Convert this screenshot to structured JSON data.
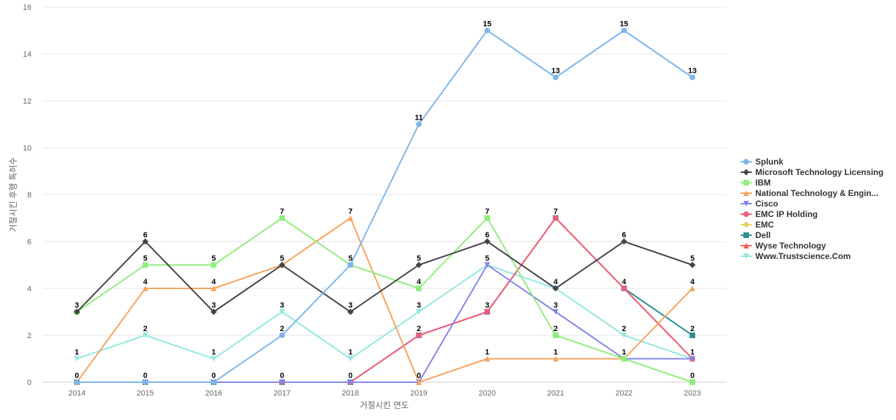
{
  "chart_data": {
    "type": "line",
    "xlabel": "거절시킨 연도",
    "ylabel": "거절시킨 후행 특허수",
    "ylim": [
      0,
      16
    ],
    "yticks": [
      0,
      2,
      4,
      6,
      8,
      10,
      12,
      14,
      16
    ],
    "categories": [
      "2014",
      "2015",
      "2016",
      "2017",
      "2018",
      "2019",
      "2020",
      "2021",
      "2022",
      "2023"
    ],
    "grid": "horizontal",
    "legend_position": "right",
    "data_labels": true,
    "series": [
      {
        "name": "Splunk",
        "color": "#7cb5ec",
        "marker": "circle",
        "values": [
          0,
          0,
          0,
          2,
          5,
          11,
          15,
          13,
          15,
          13
        ]
      },
      {
        "name": "Microsoft Technology Licensing",
        "color": "#434348",
        "marker": "diamond",
        "values": [
          3,
          6,
          3,
          5,
          3,
          5,
          6,
          4,
          6,
          5
        ]
      },
      {
        "name": "IBM",
        "color": "#90ed7d",
        "marker": "square",
        "values": [
          3,
          5,
          5,
          7,
          5,
          4,
          7,
          2,
          1,
          0
        ]
      },
      {
        "name": "National Technology & Engin...",
        "color": "#f7a35c",
        "marker": "triangle",
        "values": [
          0,
          4,
          4,
          5,
          7,
          0,
          1,
          1,
          1,
          4
        ]
      },
      {
        "name": "Cisco",
        "color": "#8085e9",
        "marker": "triangle-down",
        "values": [
          0,
          0,
          0,
          0,
          0,
          0,
          5,
          3,
          1,
          1
        ]
      },
      {
        "name": "EMC IP Holding",
        "color": "#f15c80",
        "marker": "circle",
        "values": [
          0,
          0,
          0,
          0,
          0,
          2,
          3,
          7,
          4,
          1
        ]
      },
      {
        "name": "EMC",
        "color": "#e4d354",
        "marker": "diamond",
        "values": [
          0,
          0,
          0,
          0,
          0,
          2,
          3,
          7,
          4,
          1
        ]
      },
      {
        "name": "Dell",
        "color": "#2b908f",
        "marker": "square",
        "values": [
          0,
          0,
          0,
          0,
          0,
          2,
          3,
          7,
          4,
          2
        ]
      },
      {
        "name": "Wyse Technology",
        "color": "#f45b5b",
        "marker": "triangle",
        "values": [
          0,
          0,
          0,
          0,
          0,
          2,
          3,
          7,
          4,
          1
        ]
      },
      {
        "name": "Www.Trustscience.Com",
        "color": "#91e8e1",
        "marker": "triangle-down",
        "values": [
          1,
          2,
          1,
          3,
          1,
          3,
          5,
          4,
          2,
          1
        ]
      }
    ],
    "point_labels": [
      {
        "x": "2014",
        "value": "3"
      },
      {
        "x": "2014",
        "value": "1"
      },
      {
        "x": "2014",
        "value": "0"
      },
      {
        "x": "2015",
        "value": "6"
      },
      {
        "x": "2015",
        "value": "5"
      },
      {
        "x": "2015",
        "value": "4"
      },
      {
        "x": "2015",
        "value": "2"
      },
      {
        "x": "2015",
        "value": "0"
      },
      {
        "x": "2016",
        "value": "5"
      },
      {
        "x": "2016",
        "value": "4"
      },
      {
        "x": "2016",
        "value": "3"
      },
      {
        "x": "2016",
        "value": "1"
      },
      {
        "x": "2016",
        "value": "0"
      },
      {
        "x": "2017",
        "value": "7"
      },
      {
        "x": "2017",
        "value": "5"
      },
      {
        "x": "2017",
        "value": "3"
      },
      {
        "x": "2017",
        "value": "2"
      },
      {
        "x": "2017",
        "value": "0"
      },
      {
        "x": "2018",
        "value": "7"
      },
      {
        "x": "2018",
        "value": "5"
      },
      {
        "x": "2018",
        "value": "3"
      },
      {
        "x": "2018",
        "value": "1"
      },
      {
        "x": "2018",
        "value": "0"
      },
      {
        "x": "2019",
        "value": "11"
      },
      {
        "x": "2019",
        "value": "5"
      },
      {
        "x": "2019",
        "value": "4"
      },
      {
        "x": "2019",
        "value": "3"
      },
      {
        "x": "2019",
        "value": "2"
      },
      {
        "x": "2019",
        "value": "0"
      },
      {
        "x": "2020",
        "value": "15"
      },
      {
        "x": "2020",
        "value": "7"
      },
      {
        "x": "2020",
        "value": "6"
      },
      {
        "x": "2020",
        "value": "5"
      },
      {
        "x": "2020",
        "value": "3"
      },
      {
        "x": "2020",
        "value": "1"
      },
      {
        "x": "2021",
        "value": "13"
      },
      {
        "x": "2021",
        "value": "7"
      },
      {
        "x": "2021",
        "value": "4"
      },
      {
        "x": "2021",
        "value": "3"
      },
      {
        "x": "2021",
        "value": "2"
      },
      {
        "x": "2021",
        "value": "1"
      },
      {
        "x": "2022",
        "value": "15"
      },
      {
        "x": "2022",
        "value": "6"
      },
      {
        "x": "2022",
        "value": "4"
      },
      {
        "x": "2022",
        "value": "2"
      },
      {
        "x": "2022",
        "value": "1"
      },
      {
        "x": "2023",
        "value": "13"
      },
      {
        "x": "2023",
        "value": "5"
      },
      {
        "x": "2023",
        "value": "4"
      },
      {
        "x": "2023",
        "value": "2"
      },
      {
        "x": "2023",
        "value": "1"
      },
      {
        "x": "2023",
        "value": "0"
      }
    ]
  }
}
